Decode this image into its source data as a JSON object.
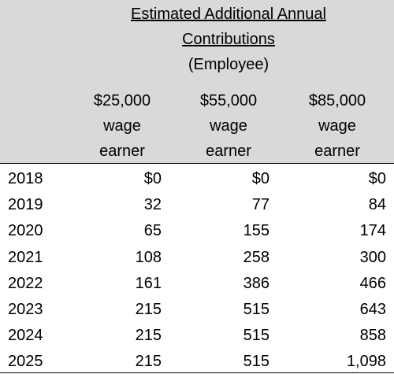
{
  "table": {
    "title": [
      "Estimated Additional Annual",
      "Contributions",
      "(Employee)"
    ],
    "columns": [
      [
        "$25,000",
        "wage",
        "earner"
      ],
      [
        "$55,000",
        "wage",
        "earner"
      ],
      [
        "$85,000",
        "wage",
        "earner"
      ]
    ],
    "rows": [
      [
        "2018",
        "$0",
        "$0",
        "$0"
      ],
      [
        "2019",
        "32",
        "77",
        "84"
      ],
      [
        "2020",
        "65",
        "155",
        "174"
      ],
      [
        "2021",
        "108",
        "258",
        "300"
      ],
      [
        "2022",
        "161",
        "386",
        "466"
      ],
      [
        "2023",
        "215",
        "515",
        "643"
      ],
      [
        "2024",
        "215",
        "515",
        "858"
      ],
      [
        "2025",
        "215",
        "515",
        "1,098"
      ]
    ]
  }
}
